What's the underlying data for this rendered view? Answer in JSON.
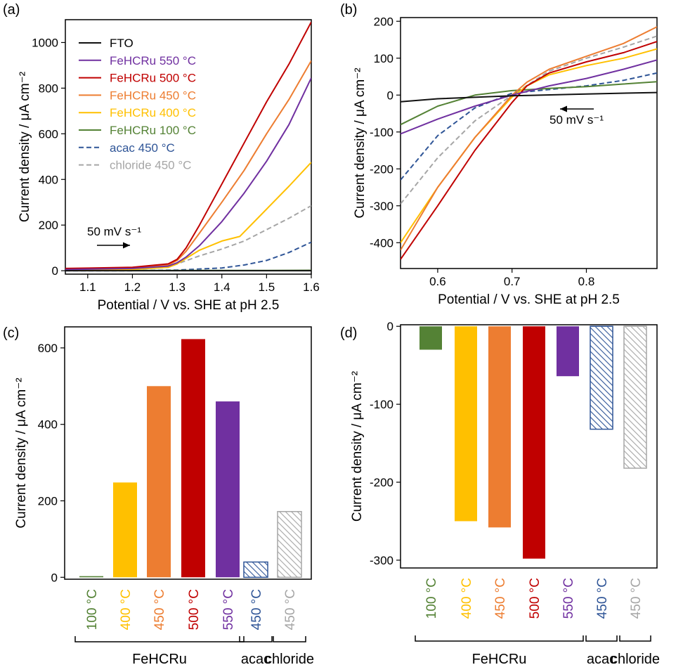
{
  "panels": {
    "a": "(a)",
    "b": "(b)",
    "c": "(c)",
    "d": "(d)"
  },
  "colors": {
    "fto": "#111111",
    "fehcru_550": "#7030a0",
    "fehcru_500": "#c00000",
    "fehcru_450": "#ed7d31",
    "fehcru_400": "#ffc000",
    "fehcru_100": "#548235",
    "acac_450": "#2f5597",
    "chloride_450": "#a6a6a6"
  },
  "chart_data": [
    {
      "id": "a",
      "type": "line",
      "xlabel": "Potential / V vs. SHE at pH 2.5",
      "ylabel": "Current density / μA cm⁻²",
      "xlim": [
        1.05,
        1.6
      ],
      "ylim": [
        -15,
        1100
      ],
      "xticks": [
        1.1,
        1.2,
        1.3,
        1.4,
        1.5,
        1.6
      ],
      "yticks": [
        0,
        200,
        400,
        600,
        800,
        1000
      ],
      "legend_position": "top-left",
      "annotation": "50 mV s⁻¹",
      "annotation_arrow": "right",
      "series": [
        {
          "name": "FTO",
          "color": "#111111",
          "dash": false,
          "x": [
            1.05,
            1.2,
            1.3,
            1.4,
            1.5,
            1.6
          ],
          "y": [
            0,
            0,
            0,
            0,
            0,
            0
          ]
        },
        {
          "name": "FeHCRu 550 °C",
          "color": "#7030a0",
          "dash": false,
          "x": [
            1.05,
            1.2,
            1.28,
            1.3,
            1.32,
            1.35,
            1.4,
            1.45,
            1.5,
            1.55,
            1.6
          ],
          "y": [
            5,
            10,
            20,
            35,
            60,
            110,
            215,
            340,
            480,
            640,
            845
          ]
        },
        {
          "name": "FeHCRu 500 °C",
          "color": "#c00000",
          "dash": false,
          "x": [
            1.05,
            1.2,
            1.28,
            1.3,
            1.32,
            1.35,
            1.4,
            1.45,
            1.5,
            1.55,
            1.6
          ],
          "y": [
            10,
            15,
            30,
            50,
            100,
            200,
            380,
            560,
            740,
            905,
            1090
          ]
        },
        {
          "name": "FeHCRu 450 °C",
          "color": "#ed7d31",
          "dash": false,
          "x": [
            1.05,
            1.2,
            1.28,
            1.3,
            1.32,
            1.35,
            1.4,
            1.45,
            1.5,
            1.55,
            1.6
          ],
          "y": [
            6,
            12,
            25,
            45,
            85,
            165,
            300,
            440,
            600,
            750,
            920
          ]
        },
        {
          "name": "FeHCRu 400 °C",
          "color": "#ffc000",
          "dash": false,
          "x": [
            1.05,
            1.2,
            1.28,
            1.3,
            1.35,
            1.4,
            1.44,
            1.47,
            1.5,
            1.55,
            1.6
          ],
          "y": [
            3,
            6,
            15,
            30,
            90,
            130,
            150,
            210,
            270,
            370,
            475
          ]
        },
        {
          "name": "FeHCRu 100 °C",
          "color": "#548235",
          "dash": false,
          "x": [
            1.05,
            1.2,
            1.3,
            1.4,
            1.5,
            1.6
          ],
          "y": [
            1,
            1,
            1,
            1,
            1,
            2
          ]
        },
        {
          "name": "acac 450 °C",
          "color": "#2f5597",
          "dash": true,
          "x": [
            1.05,
            1.2,
            1.3,
            1.4,
            1.45,
            1.5,
            1.55,
            1.6
          ],
          "y": [
            0,
            0,
            3,
            12,
            25,
            45,
            80,
            125
          ]
        },
        {
          "name": "chloride 450 °C",
          "color": "#a6a6a6",
          "dash": true,
          "x": [
            1.05,
            1.2,
            1.28,
            1.3,
            1.35,
            1.4,
            1.45,
            1.5,
            1.55,
            1.6
          ],
          "y": [
            3,
            6,
            15,
            30,
            65,
            95,
            130,
            180,
            230,
            285
          ]
        }
      ]
    },
    {
      "id": "b",
      "type": "line",
      "xlabel": "Potential / V vs. SHE at pH 2.5",
      "ylabel": "Current density / μA cm⁻²",
      "xlim": [
        0.55,
        0.895
      ],
      "ylim": [
        -470,
        210
      ],
      "xticks": [
        0.6,
        0.7,
        0.8
      ],
      "yticks": [
        -400,
        -300,
        -200,
        -100,
        0,
        100,
        200
      ],
      "annotation": "50 mV s⁻¹",
      "annotation_arrow": "left",
      "series": [
        {
          "name": "FTO",
          "color": "#111111",
          "dash": false,
          "x": [
            0.55,
            0.6,
            0.7,
            0.8,
            0.895
          ],
          "y": [
            -18,
            -10,
            -2,
            3,
            7
          ]
        },
        {
          "name": "FeHCRu 550 °C",
          "color": "#7030a0",
          "dash": false,
          "x": [
            0.55,
            0.6,
            0.65,
            0.7,
            0.75,
            0.8,
            0.85,
            0.895
          ],
          "y": [
            -105,
            -65,
            -30,
            0,
            25,
            45,
            70,
            95
          ]
        },
        {
          "name": "FeHCRu 500 °C",
          "color": "#c00000",
          "dash": false,
          "x": [
            0.55,
            0.6,
            0.65,
            0.7,
            0.72,
            0.75,
            0.8,
            0.85,
            0.895
          ],
          "y": [
            -445,
            -300,
            -150,
            -20,
            25,
            60,
            90,
            115,
            145
          ]
        },
        {
          "name": "FeHCRu 450 °C",
          "color": "#ed7d31",
          "dash": false,
          "x": [
            0.55,
            0.6,
            0.65,
            0.7,
            0.72,
            0.75,
            0.8,
            0.85,
            0.895
          ],
          "y": [
            -420,
            -250,
            -115,
            0,
            35,
            70,
            105,
            140,
            185
          ]
        },
        {
          "name": "FeHCRu 400 °C",
          "color": "#ffc000",
          "dash": false,
          "x": [
            0.55,
            0.6,
            0.65,
            0.7,
            0.72,
            0.75,
            0.8,
            0.85,
            0.895
          ],
          "y": [
            -400,
            -250,
            -115,
            -5,
            25,
            55,
            80,
            100,
            125
          ]
        },
        {
          "name": "FeHCRu 100 °C",
          "color": "#548235",
          "dash": false,
          "x": [
            0.55,
            0.6,
            0.65,
            0.7,
            0.75,
            0.8,
            0.85,
            0.895
          ],
          "y": [
            -80,
            -30,
            0,
            12,
            18,
            23,
            30,
            36
          ]
        },
        {
          "name": "acac 450 °C",
          "color": "#2f5597",
          "dash": true,
          "x": [
            0.55,
            0.6,
            0.65,
            0.7,
            0.75,
            0.8,
            0.85,
            0.895
          ],
          "y": [
            -230,
            -110,
            -35,
            5,
            15,
            25,
            40,
            60
          ]
        },
        {
          "name": "chloride 450 °C",
          "color": "#a6a6a6",
          "dash": true,
          "x": [
            0.55,
            0.6,
            0.65,
            0.7,
            0.75,
            0.8,
            0.85,
            0.895
          ],
          "y": [
            -295,
            -170,
            -70,
            0,
            65,
            100,
            130,
            160
          ]
        }
      ]
    },
    {
      "id": "c",
      "type": "bar",
      "ylabel": "Current density / μA cm⁻²",
      "ylim": [
        -5,
        655
      ],
      "yticks": [
        0,
        200,
        400,
        600
      ],
      "categories": [
        "100 °C",
        "400 °C",
        "450 °C",
        "500 °C",
        "550 °C",
        "450 °C",
        "450 °C"
      ],
      "values": [
        3,
        248,
        500,
        623,
        460,
        40,
        172
      ],
      "bar_colors": [
        "#548235",
        "#ffc000",
        "#ed7d31",
        "#c00000",
        "#7030a0",
        "#2f5597",
        "#a6a6a6"
      ],
      "hatched": [
        false,
        false,
        false,
        false,
        false,
        true,
        true
      ],
      "groups": [
        {
          "label": "FeHCRu",
          "from": 0,
          "to": 4
        },
        {
          "label": "acac",
          "from": 5,
          "to": 5
        },
        {
          "label": "chloride",
          "from": 6,
          "to": 6
        }
      ]
    },
    {
      "id": "d",
      "type": "bar",
      "ylabel": "Current density / μA cm⁻²",
      "ylim": [
        -310,
        2
      ],
      "yticks": [
        0,
        -100,
        -200,
        -300
      ],
      "categories": [
        "100 °C",
        "400 °C",
        "450 °C",
        "500 °C",
        "550 °C",
        "450 °C",
        "450 °C"
      ],
      "values": [
        -30,
        -250,
        -258,
        -298,
        -64,
        -132,
        -182
      ],
      "bar_colors": [
        "#548235",
        "#ffc000",
        "#ed7d31",
        "#c00000",
        "#7030a0",
        "#2f5597",
        "#a6a6a6"
      ],
      "hatched": [
        false,
        false,
        false,
        false,
        false,
        true,
        true
      ],
      "groups": [
        {
          "label": "FeHCRu",
          "from": 0,
          "to": 4
        },
        {
          "label": "acac",
          "from": 5,
          "to": 5
        },
        {
          "label": "chloride",
          "from": 6,
          "to": 6
        }
      ]
    }
  ]
}
